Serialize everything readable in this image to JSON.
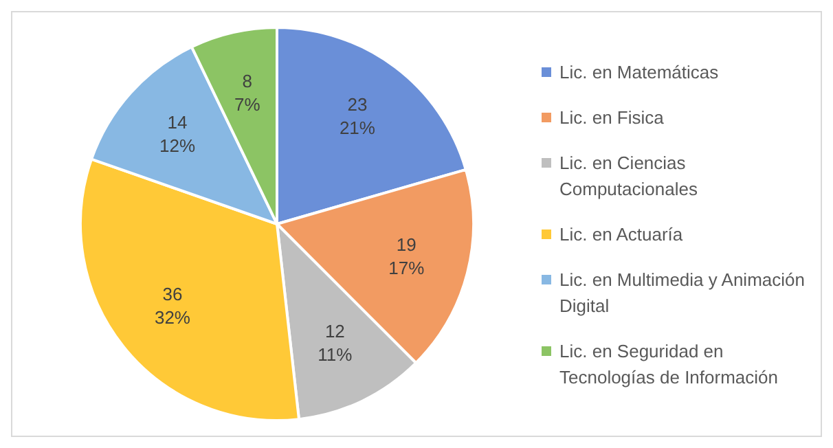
{
  "chart_data": {
    "type": "pie",
    "categories": [
      "Lic. en Matemáticas",
      "Lic. en Fisica",
      "Lic. en Ciencias Computacionales",
      "Lic. en Actuaría",
      "Lic. en Multimedia y Animación Digital",
      "Lic. en Seguridad en Tecnologías de Información"
    ],
    "values": [
      23,
      19,
      12,
      36,
      14,
      8
    ],
    "colors": [
      "#6a8fd8",
      "#f29b62",
      "#bfbfbf",
      "#ffc937",
      "#88b8e3",
      "#8cc464"
    ],
    "value_labels": [
      "23\n21%",
      "19\n17%",
      "12\n11%",
      "36\n32%",
      "14\n12%",
      "8\n7%"
    ],
    "legend": "right"
  }
}
